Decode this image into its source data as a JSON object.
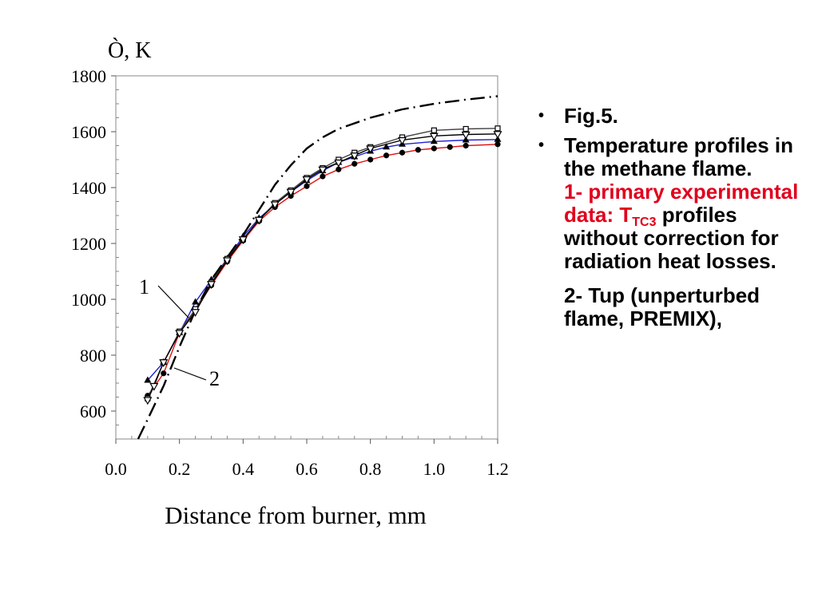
{
  "chart_data": {
    "type": "line",
    "ylabel": "Ò, K",
    "xlabel": "Distance from burner, mm",
    "xlim": [
      0.0,
      1.2
    ],
    "ylim": [
      500,
      1800
    ],
    "xticks": [
      "0.0",
      "0.2",
      "0.4",
      "0.6",
      "0.8",
      "1.0",
      "1.2"
    ],
    "yticks": [
      "600",
      "800",
      "1000",
      "1200",
      "1400",
      "1600",
      "1800"
    ],
    "ytick_values": [
      600,
      800,
      1000,
      1200,
      1400,
      1600,
      1800
    ],
    "xtick_values": [
      0.0,
      0.2,
      0.4,
      0.6,
      0.8,
      1.0,
      1.2
    ],
    "grid": false,
    "curve_labels": [
      "1",
      "2"
    ],
    "series": [
      {
        "name": "",
        "color": "#1f1fd0",
        "marker": "triangle-up",
        "x": [
          0.1,
          0.15,
          0.2,
          0.25,
          0.3,
          0.35,
          0.4,
          0.45,
          0.5,
          0.55,
          0.6,
          0.65,
          0.7,
          0.75,
          0.8,
          0.85,
          0.9,
          1.0,
          1.1,
          1.2
        ],
        "y": [
          710,
          775,
          880,
          990,
          1070,
          1145,
          1225,
          1290,
          1340,
          1385,
          1425,
          1460,
          1490,
          1510,
          1530,
          1545,
          1555,
          1565,
          1570,
          1572
        ]
      },
      {
        "name": "",
        "color": "#e01010",
        "marker": "circle",
        "x": [
          0.1,
          0.15,
          0.2,
          0.25,
          0.3,
          0.35,
          0.4,
          0.45,
          0.5,
          0.55,
          0.6,
          0.65,
          0.7,
          0.75,
          0.8,
          0.85,
          0.9,
          0.95,
          1.0,
          1.05,
          1.1,
          1.2
        ],
        "y": [
          655,
          735,
          880,
          960,
          1050,
          1135,
          1210,
          1280,
          1330,
          1370,
          1405,
          1440,
          1465,
          1485,
          1500,
          1515,
          1525,
          1535,
          1540,
          1545,
          1550,
          1555
        ]
      },
      {
        "name": "",
        "color": "#444444",
        "marker": "square",
        "x": [
          0.1,
          0.15,
          0.2,
          0.25,
          0.3,
          0.35,
          0.4,
          0.45,
          0.5,
          0.55,
          0.6,
          0.65,
          0.7,
          0.75,
          0.8,
          0.9,
          1.0,
          1.1,
          1.2
        ],
        "y": [
          645,
          775,
          885,
          965,
          1060,
          1145,
          1215,
          1285,
          1345,
          1390,
          1435,
          1470,
          1500,
          1525,
          1545,
          1580,
          1605,
          1610,
          1612
        ]
      },
      {
        "name": "",
        "color": "#000000",
        "marker": "triangle-down",
        "x": [
          0.1,
          0.12,
          0.15,
          0.2,
          0.25,
          0.3,
          0.35,
          0.4,
          0.45,
          0.5,
          0.55,
          0.6,
          0.65,
          0.7,
          0.75,
          0.8,
          0.9,
          1.0,
          1.1,
          1.2
        ],
        "y": [
          640,
          690,
          775,
          880,
          955,
          1055,
          1140,
          1215,
          1285,
          1340,
          1385,
          1430,
          1465,
          1490,
          1515,
          1540,
          1570,
          1585,
          1590,
          1592
        ]
      },
      {
        "name": "",
        "color": "#000000",
        "marker": "none",
        "dash": "dash-dot",
        "x": [
          0.07,
          0.1,
          0.15,
          0.2,
          0.25,
          0.3,
          0.35,
          0.4,
          0.45,
          0.5,
          0.55,
          0.6,
          0.65,
          0.7,
          0.8,
          0.9,
          1.0,
          1.1,
          1.2
        ],
        "y": [
          500,
          570,
          690,
          830,
          960,
          1070,
          1150,
          1230,
          1320,
          1410,
          1480,
          1540,
          1580,
          1610,
          1650,
          1680,
          1700,
          1715,
          1727
        ]
      }
    ]
  },
  "notes": {
    "bullet": "•",
    "item1": "Fig.5.",
    "item2_line1": "Temperature profiles in the methane flame.",
    "item2_red_a": "1- primary experimental data: T",
    "item2_red_sub": "TC3",
    "item2_tail": " profiles without correction for radiation heat losses.",
    "item3": "2- Tup (unperturbed flame, PREMIX),"
  }
}
